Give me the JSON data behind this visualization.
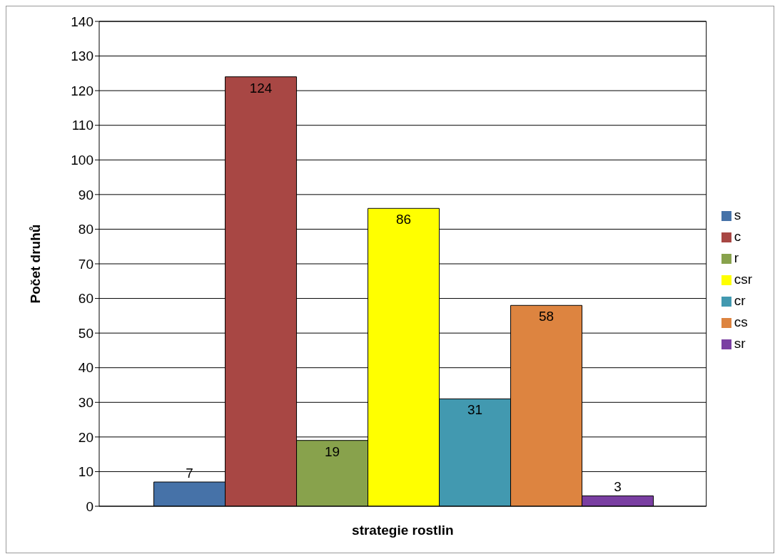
{
  "chart_data": {
    "type": "bar",
    "xlabel": "strategie rostlin",
    "ylabel": "Počet druhů",
    "categories": [
      null
    ],
    "series": [
      {
        "name": "s",
        "color": "#4672a8",
        "values": [
          7
        ]
      },
      {
        "name": "c",
        "color": "#a84744",
        "values": [
          124
        ]
      },
      {
        "name": "r",
        "color": "#88a24c",
        "values": [
          19
        ]
      },
      {
        "name": "csr",
        "color": "#ffff00",
        "values": [
          86
        ]
      },
      {
        "name": "cr",
        "color": "#4299b0",
        "values": [
          31
        ]
      },
      {
        "name": "cs",
        "color": "#dd8440",
        "values": [
          58
        ]
      },
      {
        "name": "sr",
        "color": "#7a3fa2",
        "values": [
          3
        ]
      }
    ],
    "ylim": [
      0,
      140
    ],
    "yticks": [
      0,
      10,
      20,
      30,
      40,
      50,
      60,
      70,
      80,
      90,
      100,
      110,
      120,
      130,
      140
    ],
    "grid": "y",
    "legend": "right",
    "data_labels": true
  }
}
